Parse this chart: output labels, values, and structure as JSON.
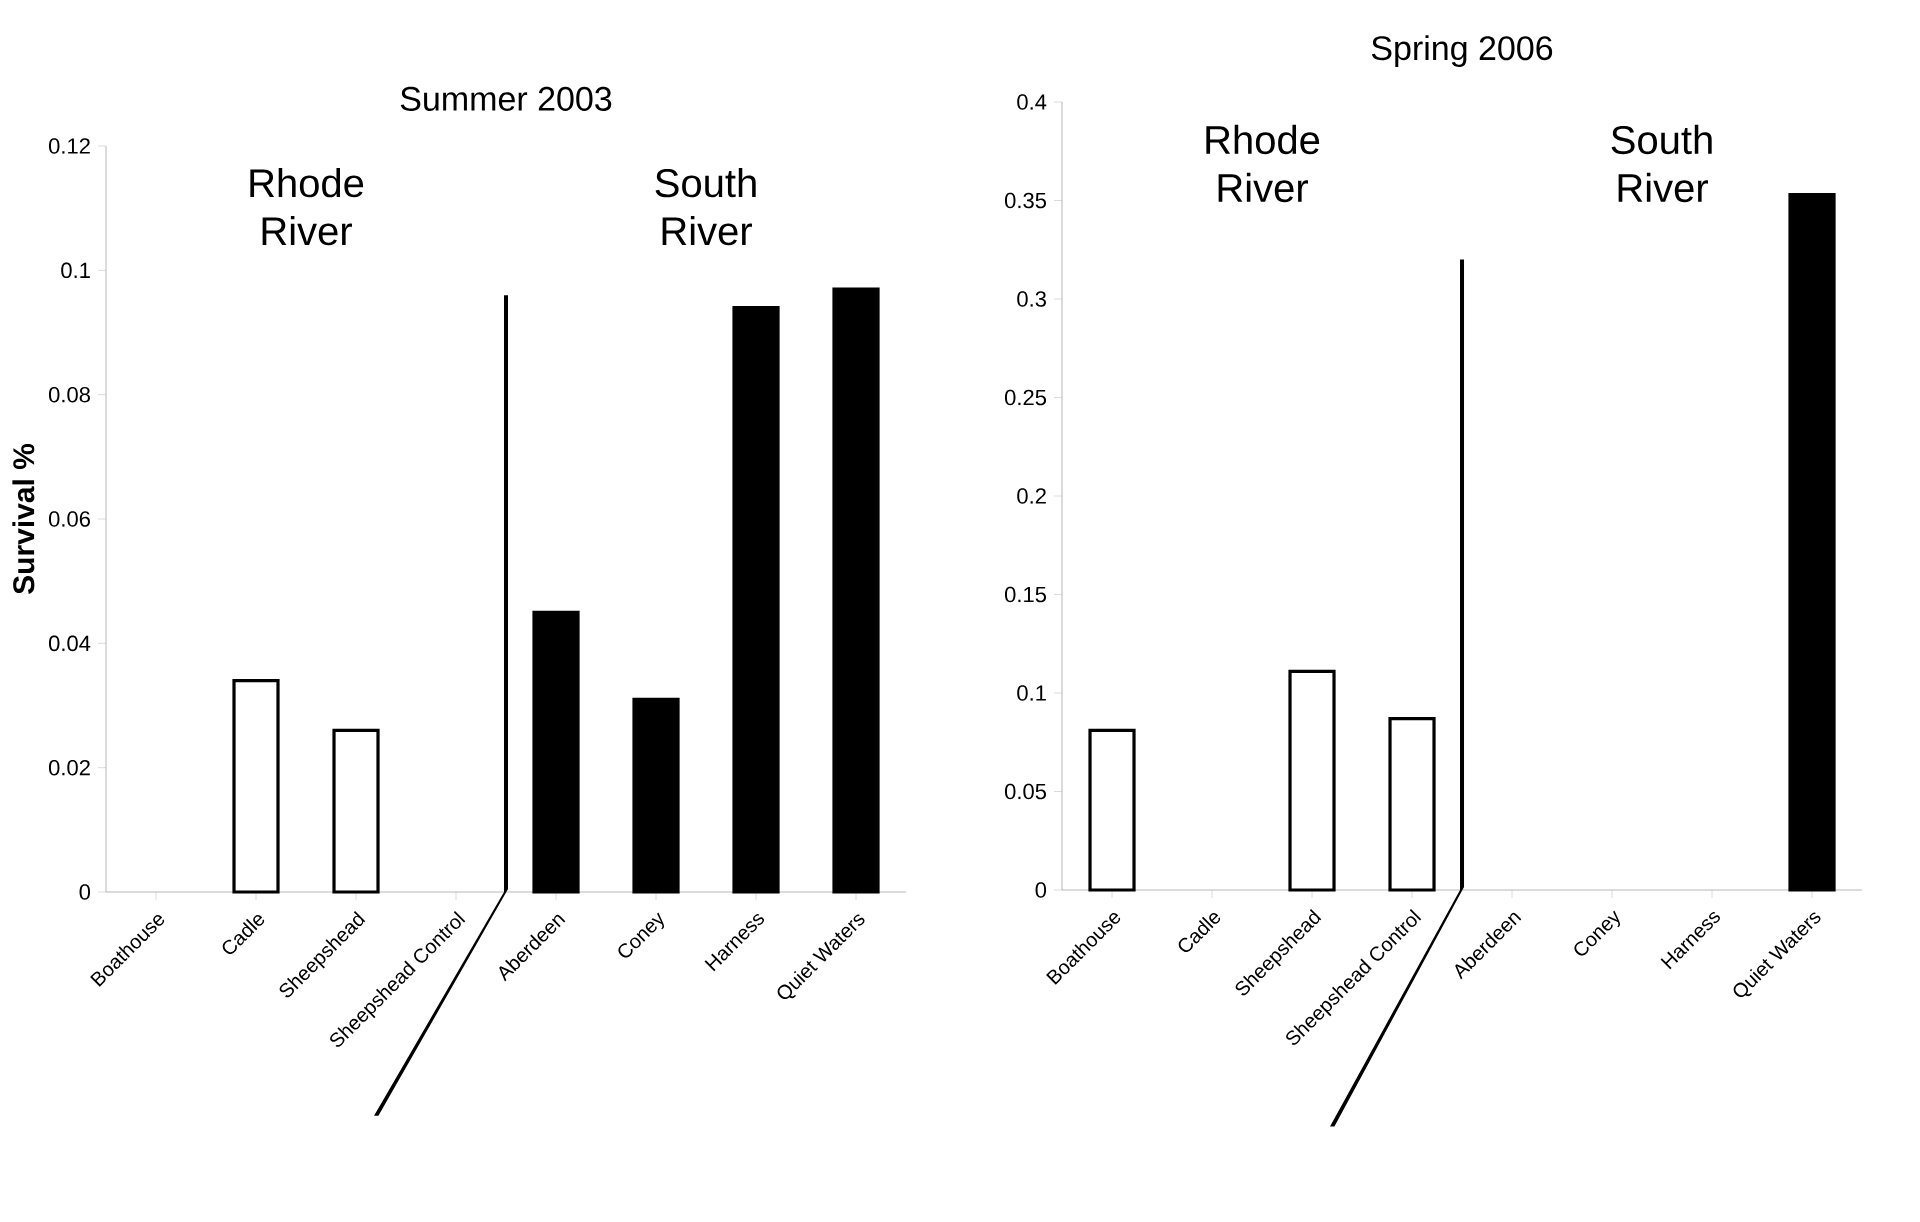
{
  "chart_data": [
    {
      "type": "bar",
      "title": "Summer 2003",
      "ylabel": "Survival %",
      "categories": [
        "Boathouse",
        "Cadle",
        "Sheepshead",
        "Sheepshead Control",
        "Aberdeen",
        "Coney",
        "Harness",
        "Quiet Waters"
      ],
      "values": [
        0,
        0.034,
        0.026,
        0,
        0.045,
        0.031,
        0.094,
        0.097
      ],
      "colors": [
        "#ffffff",
        "#ffffff",
        "#ffffff",
        "#ffffff",
        "#000000",
        "#000000",
        "#000000",
        "#000000"
      ],
      "ylim": [
        0,
        0.12
      ],
      "yticks": [
        0,
        0.02,
        0.04,
        0.06,
        0.08,
        0.1,
        0.12
      ],
      "annotations": [
        "Rhode River",
        "South River"
      ]
    },
    {
      "type": "bar",
      "title": "Spring 2006",
      "categories": [
        "Boathouse",
        "Cadle",
        "Sheepshead",
        "Sheepshead Control",
        "Aberdeen",
        "Coney",
        "Harness",
        "Quiet Waters"
      ],
      "values": [
        0.081,
        0,
        0.111,
        0.087,
        0,
        0,
        0,
        0.353
      ],
      "colors": [
        "#ffffff",
        "#ffffff",
        "#ffffff",
        "#ffffff",
        "#000000",
        "#000000",
        "#000000",
        "#000000"
      ],
      "ylim": [
        0,
        0.4
      ],
      "yticks": [
        0,
        0.05,
        0.1,
        0.15,
        0.2,
        0.25,
        0.3,
        0.35,
        0.4
      ],
      "annotations": [
        "Rhode River",
        "South River"
      ]
    }
  ]
}
